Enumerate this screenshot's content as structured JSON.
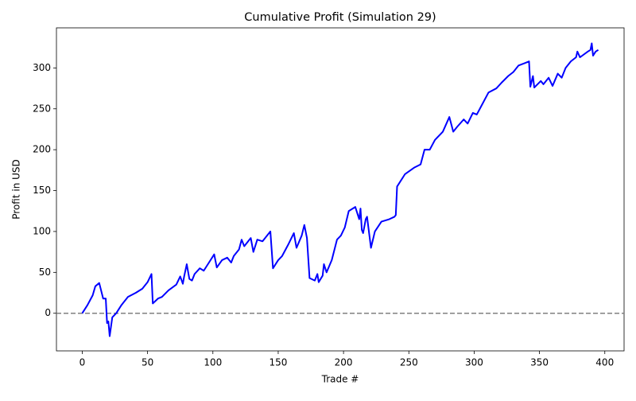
{
  "chart_data": {
    "type": "line",
    "title": "Cumulative Profit (Simulation 29)",
    "x_label": "Trade #",
    "y_label": "Profit in USD",
    "x": [
      0,
      4,
      8,
      10,
      13,
      16,
      18,
      19,
      20,
      21,
      23,
      26,
      30,
      35,
      41,
      46,
      50,
      53,
      54,
      58,
      61,
      66,
      72,
      75,
      77,
      78,
      80,
      82,
      84,
      86,
      90,
      93,
      97,
      101,
      103,
      107,
      111,
      114,
      116,
      120,
      122,
      124,
      129,
      131,
      134,
      138,
      144,
      146,
      150,
      153,
      158,
      162,
      164,
      168,
      170,
      172,
      174,
      178,
      180,
      181,
      184,
      185,
      187,
      191,
      195,
      198,
      201,
      204,
      209,
      212,
      213,
      214,
      215,
      217,
      218,
      221,
      224,
      229,
      235,
      239,
      240,
      241,
      247,
      254,
      259,
      262,
      266,
      270,
      276,
      281,
      284,
      287,
      292,
      295,
      299,
      302,
      306,
      311,
      317,
      321,
      326,
      330,
      334,
      339,
      342,
      343,
      345,
      346,
      351,
      353,
      357,
      360,
      364,
      367,
      370,
      374,
      378,
      379,
      381,
      387,
      389,
      390,
      391,
      393,
      395
    ],
    "series": [
      {
        "name": "Cumulative Profit",
        "color": "#0000ff",
        "values": [
          0,
          10,
          22,
          33,
          37,
          18,
          18,
          -12,
          -10,
          -28,
          -5,
          0,
          10,
          20,
          25,
          30,
          38,
          48,
          12,
          18,
          20,
          28,
          35,
          45,
          36,
          45,
          60,
          42,
          40,
          48,
          55,
          52,
          62,
          72,
          56,
          65,
          68,
          62,
          70,
          78,
          90,
          82,
          92,
          75,
          90,
          88,
          100,
          55,
          65,
          70,
          85,
          98,
          80,
          95,
          108,
          92,
          43,
          40,
          48,
          38,
          46,
          60,
          50,
          65,
          90,
          95,
          105,
          125,
          130,
          115,
          128,
          102,
          98,
          115,
          118,
          80,
          100,
          112,
          115,
          118,
          120,
          155,
          170,
          178,
          182,
          200,
          200,
          212,
          222,
          240,
          222,
          228,
          237,
          232,
          245,
          243,
          255,
          270,
          275,
          282,
          290,
          295,
          303,
          306,
          308,
          277,
          290,
          276,
          284,
          280,
          288,
          278,
          293,
          288,
          300,
          308,
          313,
          320,
          313,
          320,
          322,
          330,
          315,
          320,
          322
        ]
      }
    ],
    "xlim": [
      -19.75,
      414.75
    ],
    "ylim": [
      -46,
      349
    ],
    "xticks": [
      0,
      50,
      100,
      150,
      200,
      250,
      300,
      350,
      400
    ],
    "yticks": [
      0,
      50,
      100,
      150,
      200,
      250,
      300
    ],
    "reference_line": 0,
    "reference_color": "#808080"
  }
}
